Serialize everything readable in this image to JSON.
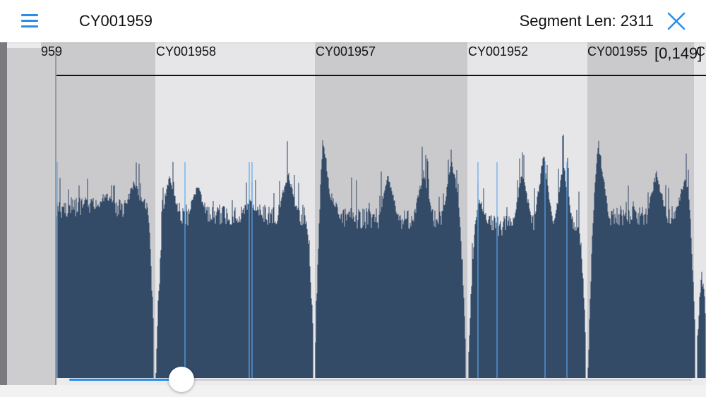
{
  "header": {
    "title": "CY001959",
    "segment_len": "Segment Len: 2311"
  },
  "icons": {
    "menu": "hamburger-menu-icon",
    "close": "close-x-icon"
  },
  "colors": {
    "accent": "#2a8ee6",
    "bar": "#344b67",
    "band_dark": "#cacacd",
    "band_light": "#e6e6e8",
    "marker": "#5aa8f0"
  },
  "viewer": {
    "range_label": "[0,149]",
    "segments": [
      {
        "label": "959"
      },
      {
        "label": "CY001958"
      },
      {
        "label": "CY001957"
      },
      {
        "label": "CY001952"
      },
      {
        "label": "CY001955"
      },
      {
        "label": "CY"
      }
    ],
    "scroll_progress": 0.18
  }
}
